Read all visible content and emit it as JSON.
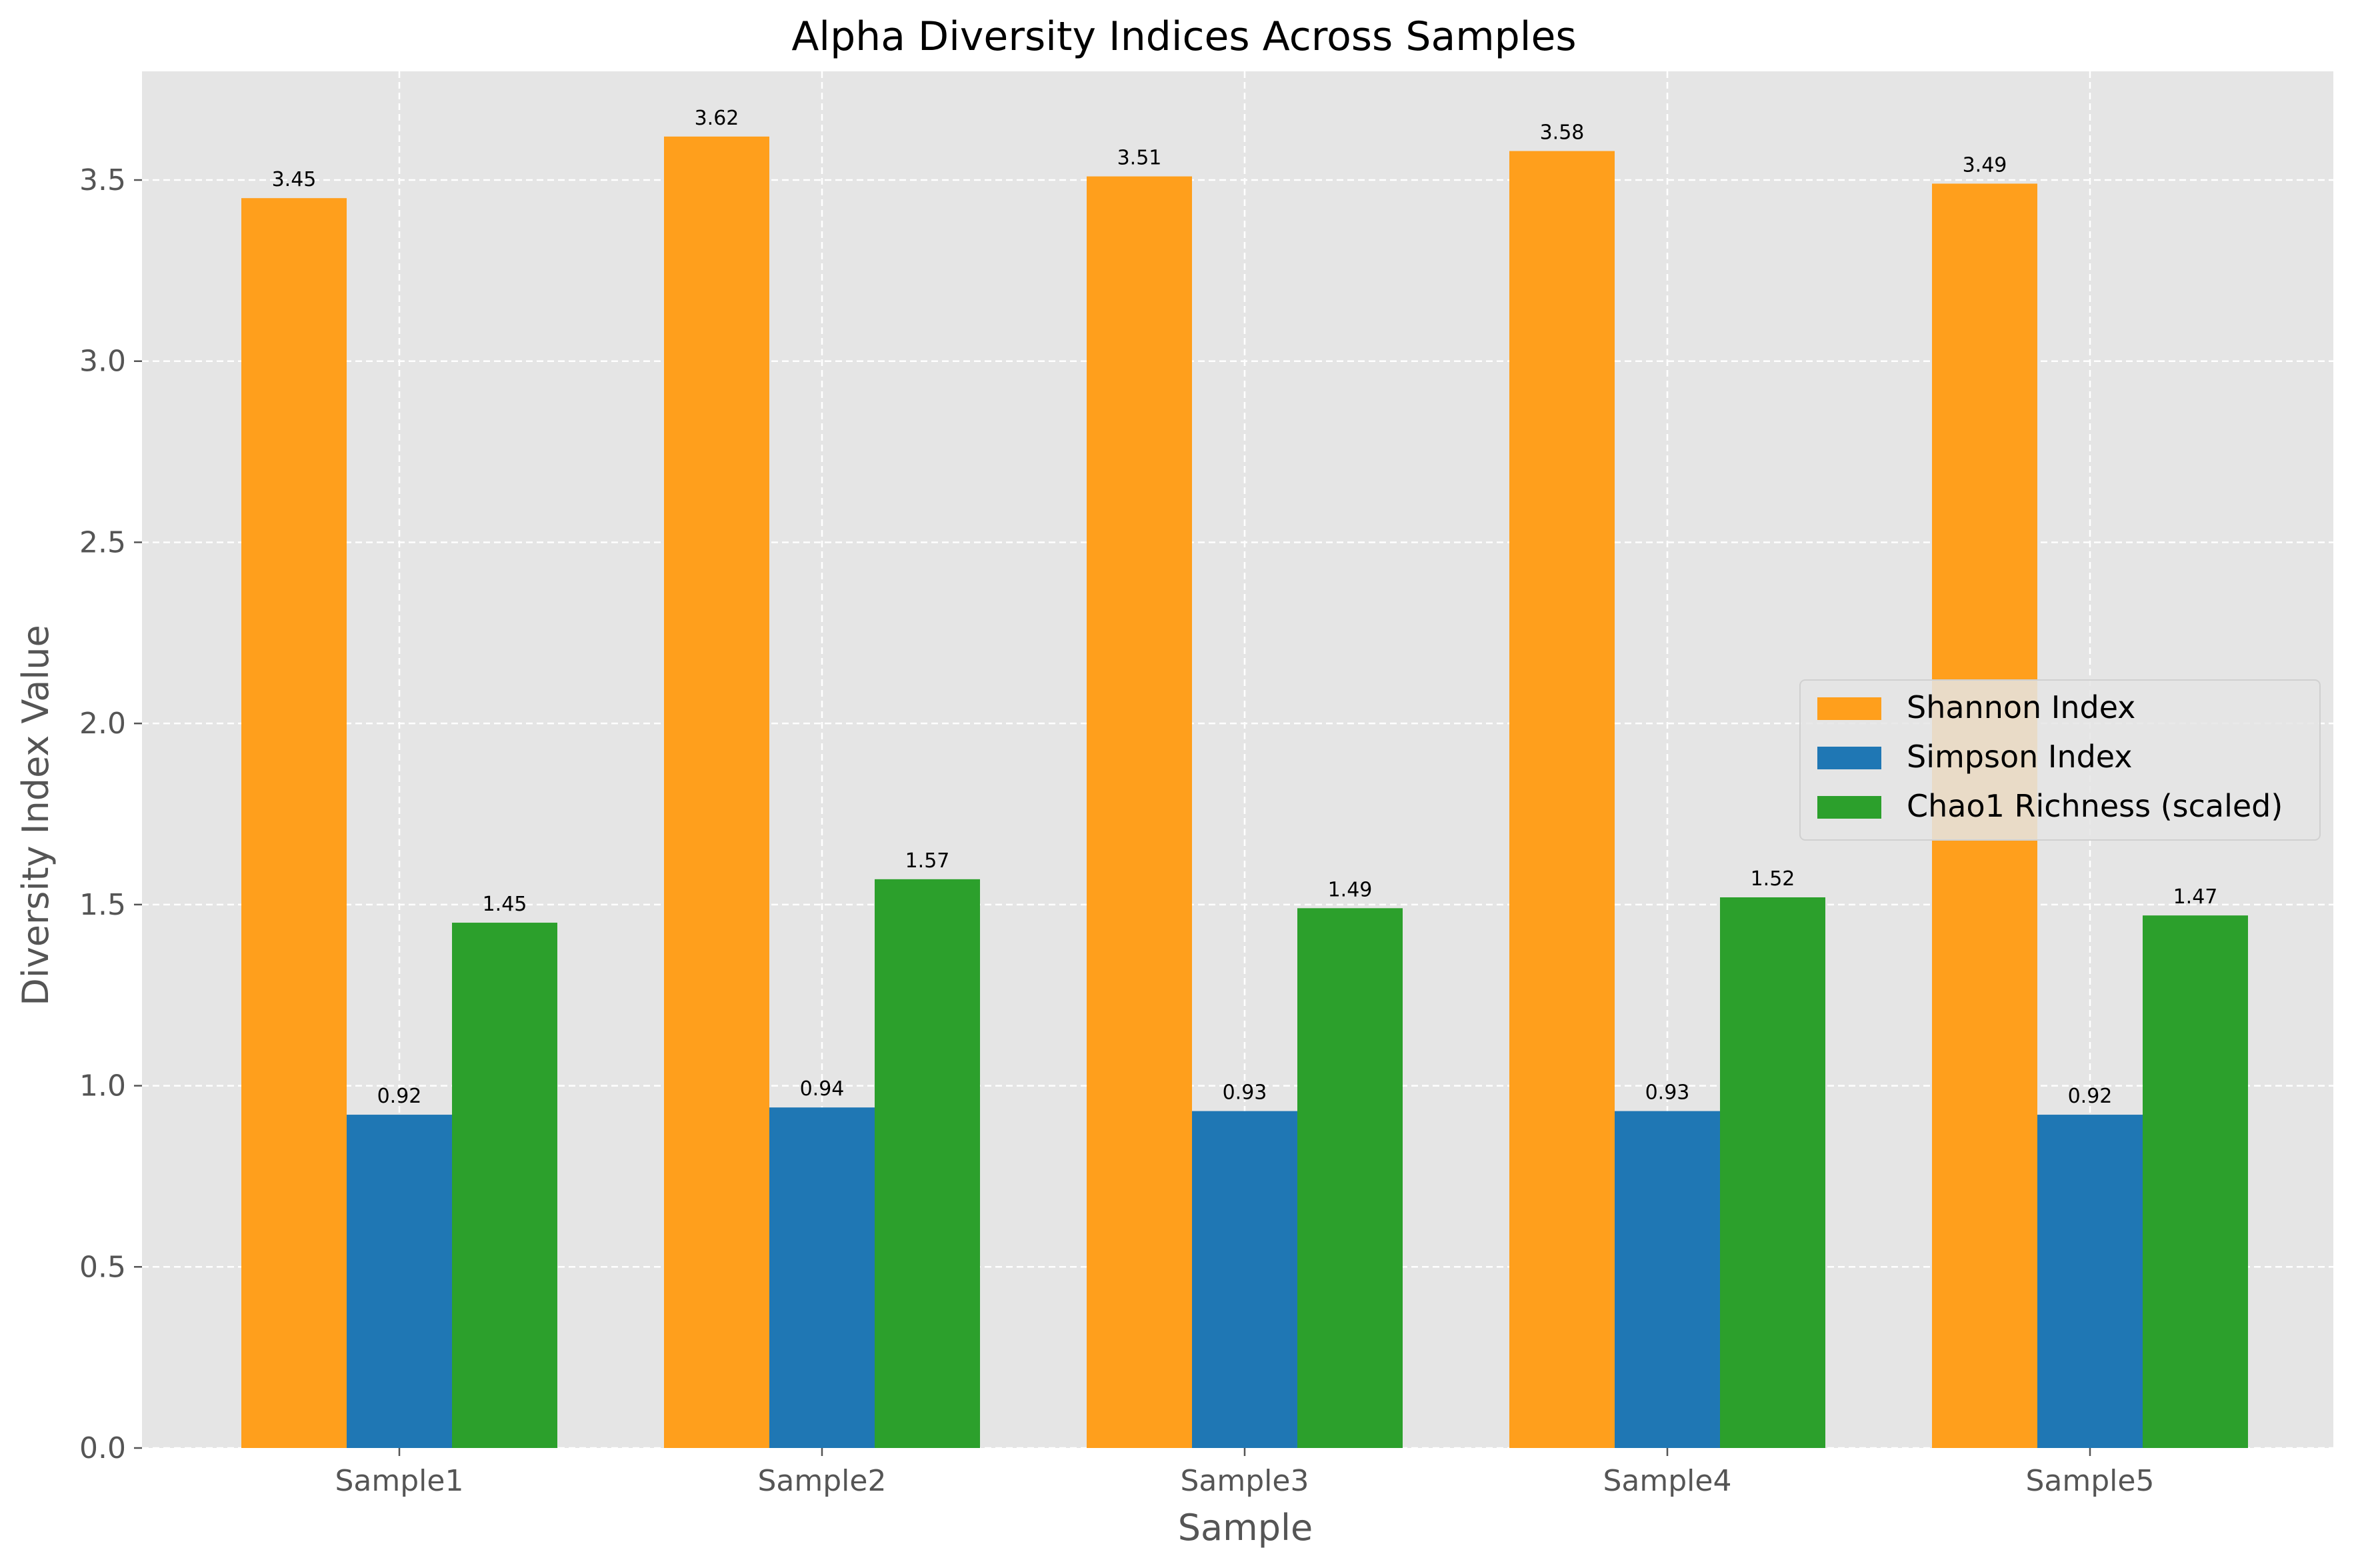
{
  "chart_data": {
    "type": "bar",
    "title": "Alpha Diversity Indices Across Samples",
    "xlabel": "Sample",
    "ylabel": "Diversity Index Value",
    "categories": [
      "Sample1",
      "Sample2",
      "Sample3",
      "Sample4",
      "Sample5"
    ],
    "series": [
      {
        "name": "Shannon Index",
        "color": "#ff9f1c",
        "values": [
          3.45,
          3.62,
          3.51,
          3.58,
          3.49
        ]
      },
      {
        "name": "Simpson Index",
        "color": "#1f77b4",
        "values": [
          0.92,
          0.94,
          0.93,
          0.93,
          0.92
        ]
      },
      {
        "name": "Chao1 Richness (scaled)",
        "color": "#2ca02c",
        "values": [
          1.45,
          1.57,
          1.49,
          1.52,
          1.47
        ]
      }
    ],
    "ylim": [
      0,
      3.8
    ],
    "yticks": [
      0.0,
      0.5,
      1.0,
      1.5,
      2.0,
      2.5,
      3.0,
      3.5
    ],
    "ytick_labels": [
      "0.0",
      "0.5",
      "1.0",
      "1.5",
      "2.0",
      "2.5",
      "3.0",
      "3.5"
    ],
    "data_labels": [
      [
        "3.45",
        "3.62",
        "3.51",
        "3.58",
        "3.49"
      ],
      [
        "0.92",
        "0.94",
        "0.93",
        "0.93",
        "0.92"
      ],
      [
        "1.45",
        "1.57",
        "1.49",
        "1.52",
        "1.47"
      ]
    ],
    "grid": true,
    "legend_position": "center-right",
    "background_color": "#e5e5e5"
  }
}
